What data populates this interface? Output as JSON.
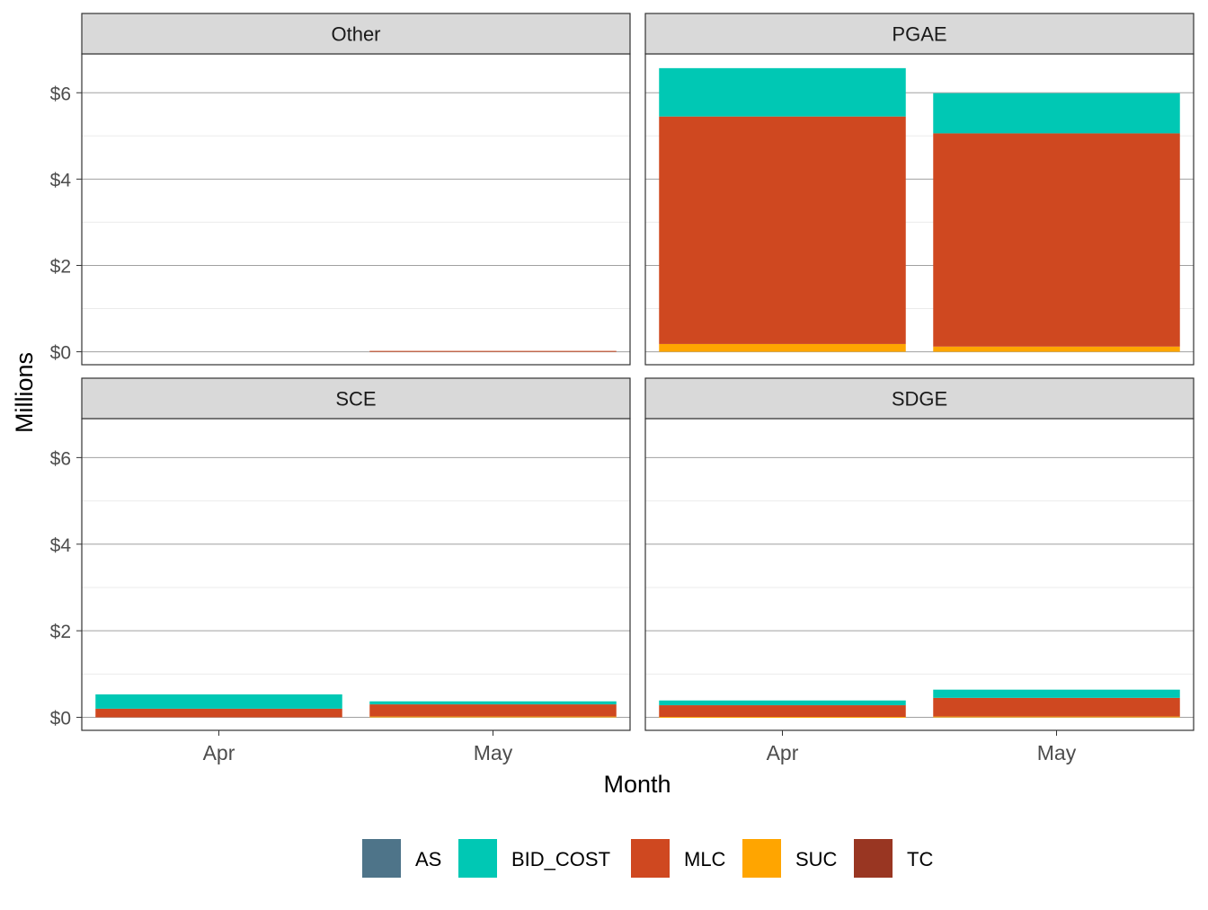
{
  "chart_data": {
    "type": "bar",
    "stacked": true,
    "facet_panels": [
      "Other",
      "PGAE",
      "SCE",
      "SDGE"
    ],
    "categories": [
      "Apr",
      "May"
    ],
    "xlabel": "Month",
    "ylabel": "Millions",
    "ylim": [
      -0.3,
      6.9
    ],
    "y_ticks": [
      0,
      2,
      4,
      6
    ],
    "y_tick_labels": [
      "$0",
      "$2",
      "$4",
      "$6"
    ],
    "grid": true,
    "legend_position": "bottom",
    "legend": [
      "AS",
      "BID_COST",
      "MLC",
      "SUC",
      "TC"
    ],
    "colors": {
      "AS": "#4e7489",
      "BID_COST": "#00c8b4",
      "MLC": "#cf4820",
      "SUC": "#ffa500",
      "TC": "#993622"
    },
    "stack_order": [
      "SUC",
      "MLC",
      "BID_COST"
    ],
    "panels": [
      {
        "name": "Other",
        "series": [
          {
            "name": "SUC",
            "values": [
              0,
              0
            ]
          },
          {
            "name": "MLC",
            "values": [
              0,
              0.02
            ]
          },
          {
            "name": "BID_COST",
            "values": [
              0,
              0
            ]
          }
        ]
      },
      {
        "name": "PGAE",
        "series": [
          {
            "name": "SUC",
            "values": [
              0.18,
              0.12
            ]
          },
          {
            "name": "MLC",
            "values": [
              5.27,
              4.94
            ]
          },
          {
            "name": "BID_COST",
            "values": [
              1.12,
              0.93
            ]
          }
        ]
      },
      {
        "name": "SCE",
        "series": [
          {
            "name": "SUC",
            "values": [
              0,
              0.02
            ]
          },
          {
            "name": "MLC",
            "values": [
              0.2,
              0.28
            ]
          },
          {
            "name": "BID_COST",
            "values": [
              0.33,
              0.07
            ]
          }
        ]
      },
      {
        "name": "SDGE",
        "series": [
          {
            "name": "SUC",
            "values": [
              0.01,
              0.02
            ]
          },
          {
            "name": "MLC",
            "values": [
              0.27,
              0.43
            ]
          },
          {
            "name": "BID_COST",
            "values": [
              0.11,
              0.19
            ]
          }
        ]
      }
    ]
  }
}
